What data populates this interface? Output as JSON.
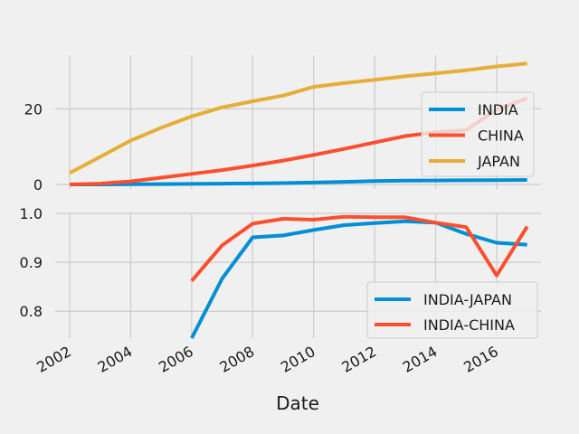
{
  "chart_data": [
    {
      "type": "line",
      "xlabel": "",
      "ylabel": "",
      "xlim": [
        2002,
        2017.5
      ],
      "ylim": [
        -1.2,
        34.2
      ],
      "yticks": [
        0,
        20
      ],
      "grid": true,
      "legend_placement": "right",
      "x": [
        2002,
        2003,
        2004,
        2005,
        2006,
        2007,
        2008,
        2009,
        2010,
        2011,
        2012,
        2013,
        2014,
        2015,
        2016,
        2017
      ],
      "series": [
        {
          "name": "INDIA",
          "color": "#008fd5",
          "values": [
            0.0,
            0.0,
            0.05,
            0.1,
            0.15,
            0.2,
            0.25,
            0.35,
            0.5,
            0.7,
            0.9,
            1.0,
            1.05,
            1.1,
            1.15,
            1.2
          ]
        },
        {
          "name": "CHINA",
          "color": "#fc4f30",
          "values": [
            0.0,
            0.2,
            0.8,
            1.8,
            2.8,
            3.8,
            5.0,
            6.3,
            7.8,
            9.4,
            11.1,
            12.8,
            13.8,
            14.4,
            19.8,
            22.8
          ]
        },
        {
          "name": "JAPAN",
          "color": "#e5ae38",
          "values": [
            3.0,
            7.3,
            11.6,
            15.0,
            18.0,
            20.4,
            22.0,
            23.5,
            25.8,
            26.8,
            27.7,
            28.6,
            29.4,
            30.2,
            31.2,
            32.0
          ]
        }
      ]
    },
    {
      "type": "line",
      "xlabel": "Date",
      "ylabel": "",
      "xlim": [
        2002,
        2017.5
      ],
      "ylim": [
        0.745,
        1.0
      ],
      "yticks": [
        0.8,
        0.9,
        1.0
      ],
      "grid": true,
      "legend_placement": "lower right",
      "x": [
        2006,
        2007,
        2008,
        2009,
        2010,
        2011,
        2012,
        2013,
        2014,
        2015,
        2016,
        2017
      ],
      "series": [
        {
          "name": "INDIA-JAPAN",
          "color": "#008fd5",
          "values": [
            0.745,
            0.867,
            0.951,
            0.955,
            0.966,
            0.976,
            0.98,
            0.984,
            0.981,
            0.958,
            0.94,
            0.936
          ]
        },
        {
          "name": "INDIA-CHINA",
          "color": "#fc4f30",
          "values": [
            0.862,
            0.935,
            0.979,
            0.989,
            0.987,
            0.993,
            0.992,
            0.992,
            0.981,
            0.972,
            0.873,
            0.973
          ]
        }
      ]
    }
  ],
  "x_tick_labels": [
    "2002",
    "2004",
    "2006",
    "2008",
    "2010",
    "2012",
    "2014",
    "2016"
  ],
  "top_y_tick_labels": [
    "0",
    "20"
  ],
  "bottom_y_tick_labels": [
    "0.8",
    "0.9",
    "1.0"
  ],
  "colors": {
    "background": "#f0f0f0",
    "grid": "#cbcbcb"
  }
}
